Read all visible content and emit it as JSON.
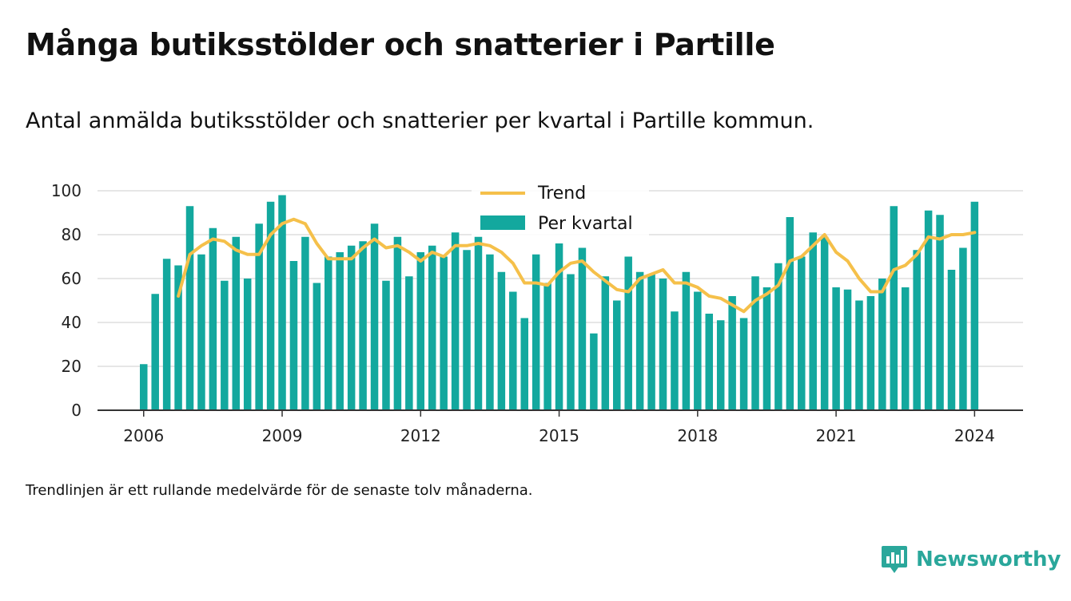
{
  "title": "Många butiksstölder och snatterier i Partille",
  "subtitle": "Antal anmälda butiksstölder och snatterier per kvartal i Partille kommun.",
  "note": "Trendlinjen är ett rullande medelvärde för de senaste tolv månaderna.",
  "brand": {
    "name": "Newsworthy",
    "icon": "newsworthy-logo-icon"
  },
  "colors": {
    "bars": "#13a89e",
    "trend": "#f5c04a",
    "grid": "#dddddd",
    "axis": "#333333"
  },
  "chart_data": {
    "type": "bar",
    "x_ticks": [
      "2006",
      "2009",
      "2012",
      "2015",
      "2018",
      "2021",
      "2024"
    ],
    "y_ticks": [
      "0",
      "20",
      "40",
      "60",
      "80",
      "100"
    ],
    "ylim": [
      0,
      100
    ],
    "xlim": [
      2005,
      2025.05
    ],
    "grid": true,
    "legend": {
      "placement": "top-center",
      "entries": [
        "Trend",
        "Per kvartal"
      ]
    },
    "series": [
      {
        "name": "Per kvartal",
        "type": "bar",
        "x": [
          2006.0,
          2006.25,
          2006.5,
          2006.75,
          2007.0,
          2007.25,
          2007.5,
          2007.75,
          2008.0,
          2008.25,
          2008.5,
          2008.75,
          2009.0,
          2009.25,
          2009.5,
          2009.75,
          2010.0,
          2010.25,
          2010.5,
          2010.75,
          2011.0,
          2011.25,
          2011.5,
          2011.75,
          2012.0,
          2012.25,
          2012.5,
          2012.75,
          2013.0,
          2013.25,
          2013.5,
          2013.75,
          2014.0,
          2014.25,
          2014.5,
          2014.75,
          2015.0,
          2015.25,
          2015.5,
          2015.75,
          2016.0,
          2016.25,
          2016.5,
          2016.75,
          2017.0,
          2017.25,
          2017.5,
          2017.75,
          2018.0,
          2018.25,
          2018.5,
          2018.75,
          2019.0,
          2019.25,
          2019.5,
          2019.75,
          2020.0,
          2020.25,
          2020.5,
          2020.75,
          2021.0,
          2021.25,
          2021.5,
          2021.75,
          2022.0,
          2022.25,
          2022.5,
          2022.75,
          2023.0,
          2023.25,
          2023.5,
          2023.75,
          2024.0
        ],
        "values": [
          21,
          53,
          69,
          66,
          93,
          71,
          83,
          59,
          79,
          60,
          85,
          95,
          98,
          68,
          79,
          58,
          70,
          72,
          75,
          77,
          85,
          59,
          79,
          61,
          72,
          75,
          70,
          81,
          73,
          79,
          71,
          63,
          54,
          42,
          71,
          58,
          76,
          62,
          74,
          35,
          61,
          50,
          70,
          63,
          62,
          60,
          45,
          63,
          54,
          44,
          41,
          52,
          42,
          61,
          56,
          67,
          88,
          70,
          81,
          79,
          56,
          55,
          50,
          52,
          60,
          93,
          56,
          73,
          91,
          89,
          64,
          74,
          95
        ]
      },
      {
        "name": "Trend",
        "type": "line",
        "x": [
          2006.75,
          2007.0,
          2007.25,
          2007.5,
          2007.75,
          2008.0,
          2008.25,
          2008.5,
          2008.75,
          2009.0,
          2009.25,
          2009.5,
          2009.75,
          2010.0,
          2010.25,
          2010.5,
          2010.75,
          2011.0,
          2011.25,
          2011.5,
          2011.75,
          2012.0,
          2012.25,
          2012.5,
          2012.75,
          2013.0,
          2013.25,
          2013.5,
          2013.75,
          2014.0,
          2014.25,
          2014.5,
          2014.75,
          2015.0,
          2015.25,
          2015.5,
          2015.75,
          2016.0,
          2016.25,
          2016.5,
          2016.75,
          2017.0,
          2017.25,
          2017.5,
          2017.75,
          2018.0,
          2018.25,
          2018.5,
          2018.75,
          2019.0,
          2019.25,
          2019.5,
          2019.75,
          2020.0,
          2020.25,
          2020.5,
          2020.75,
          2021.0,
          2021.25,
          2021.5,
          2021.75,
          2022.0,
          2022.25,
          2022.5,
          2022.75,
          2023.0,
          2023.25,
          2023.5,
          2023.75,
          2024.0
        ],
        "values": [
          52,
          71,
          75,
          78,
          77,
          73,
          71,
          71,
          80,
          85,
          87,
          85,
          76,
          69,
          69,
          69,
          74,
          78,
          74,
          75,
          72,
          68,
          72,
          70,
          75,
          75,
          76,
          75,
          72,
          67,
          58,
          58,
          57,
          63,
          67,
          68,
          63,
          59,
          55,
          54,
          60,
          62,
          64,
          58,
          58,
          56,
          52,
          51,
          48,
          45,
          50,
          53,
          57,
          68,
          70,
          75,
          80,
          72,
          68,
          60,
          54,
          54,
          64,
          66,
          71,
          79,
          78,
          80,
          80,
          81
        ]
      }
    ]
  }
}
